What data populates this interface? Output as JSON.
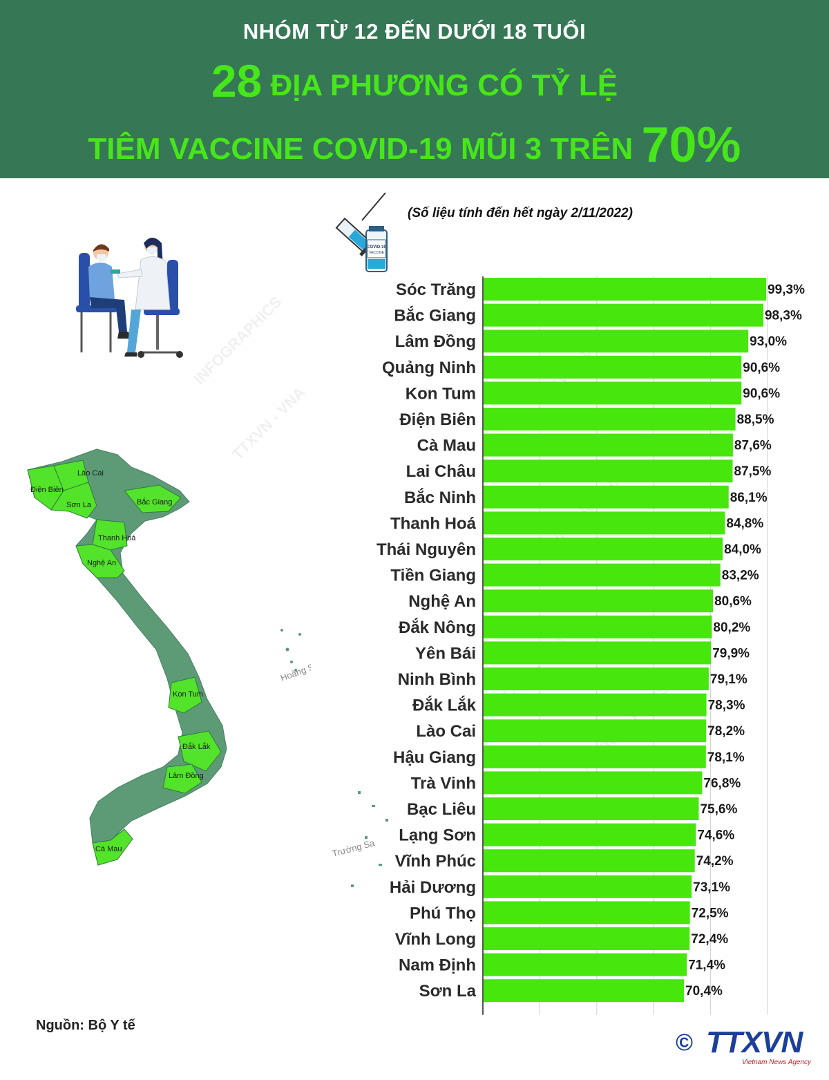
{
  "header": {
    "subtitle": "NHÓM TỪ 12 ĐẾN DƯỚI 18 TUỔI",
    "title_number": "28",
    "title_line1": "ĐỊA PHƯƠNG CÓ TỶ LỆ",
    "title_line2": "TIÊM VACCINE COVID-19 MŨI 3 TRÊN",
    "title_percent": "70%"
  },
  "note": "(Số liệu tính đến hết ngày 2/11/2022)",
  "source": "Nguồn: Bộ Y tế",
  "vial_label": {
    "line1": "COVID-19",
    "line2": "VACCINE"
  },
  "map": {
    "labels": [
      "Lào Cai",
      "Điện Biên",
      "Sơn La",
      "Bắc Giang",
      "Thanh Hoá",
      "Nghệ An",
      "Kon Tum",
      "Đắk Lắk",
      "Lâm Đồng",
      "Cà Mau"
    ],
    "islands": [
      "Hoàng Sa",
      "Trường Sa"
    ]
  },
  "logo": {
    "symbol": "©",
    "name": "TTXVN",
    "tagline": "Vietnam News Agency"
  },
  "colors": {
    "header_bg": "#367756",
    "accent_green": "#47e61a",
    "bar": "#47e60d",
    "map_dark": "#5d9b77",
    "map_light": "#53e32a"
  },
  "chart_data": {
    "type": "bar",
    "orientation": "horizontal",
    "categories": [
      "Sóc Trăng",
      "Bắc Giang",
      "Lâm Đồng",
      "Quảng Ninh",
      "Kon Tum",
      "Điện Biên",
      "Cà Mau",
      "Lai Châu",
      "Bắc Ninh",
      "Thanh Hoá",
      "Thái Nguyên",
      "Tiền Giang",
      "Nghệ An",
      "Đắk Nông",
      "Yên Bái",
      "Ninh Bình",
      "Đắk Lắk",
      "Lào Cai",
      "Hậu Giang",
      "Trà Vinh",
      "Bạc Liêu",
      "Lạng Sơn",
      "Vĩnh Phúc",
      "Hải Dương",
      "Phú Thọ",
      "Vĩnh Long",
      "Nam Định",
      "Sơn La"
    ],
    "values": [
      99.3,
      98.3,
      93.0,
      90.6,
      90.6,
      88.5,
      87.6,
      87.5,
      86.1,
      84.8,
      84.0,
      83.2,
      80.6,
      80.2,
      79.9,
      79.1,
      78.3,
      78.2,
      78.1,
      76.8,
      75.6,
      74.6,
      74.2,
      73.1,
      72.5,
      72.4,
      71.4,
      70.4
    ],
    "value_labels": [
      "99,3%",
      "98,3%",
      "93,0%",
      "90,6%",
      "90,6%",
      "88,5%",
      "87,6%",
      "87,5%",
      "86,1%",
      "84,8%",
      "84,0%",
      "83,2%",
      "80,6%",
      "80,2%",
      "79,9%",
      "79,1%",
      "78,3%",
      "78,2%",
      "78,1%",
      "76,8%",
      "75,6%",
      "74,6%",
      "74,2%",
      "73,1%",
      "72,5%",
      "72,4%",
      "71,4%",
      "70,4%"
    ],
    "xlim": [
      0,
      100
    ],
    "grid": true
  }
}
